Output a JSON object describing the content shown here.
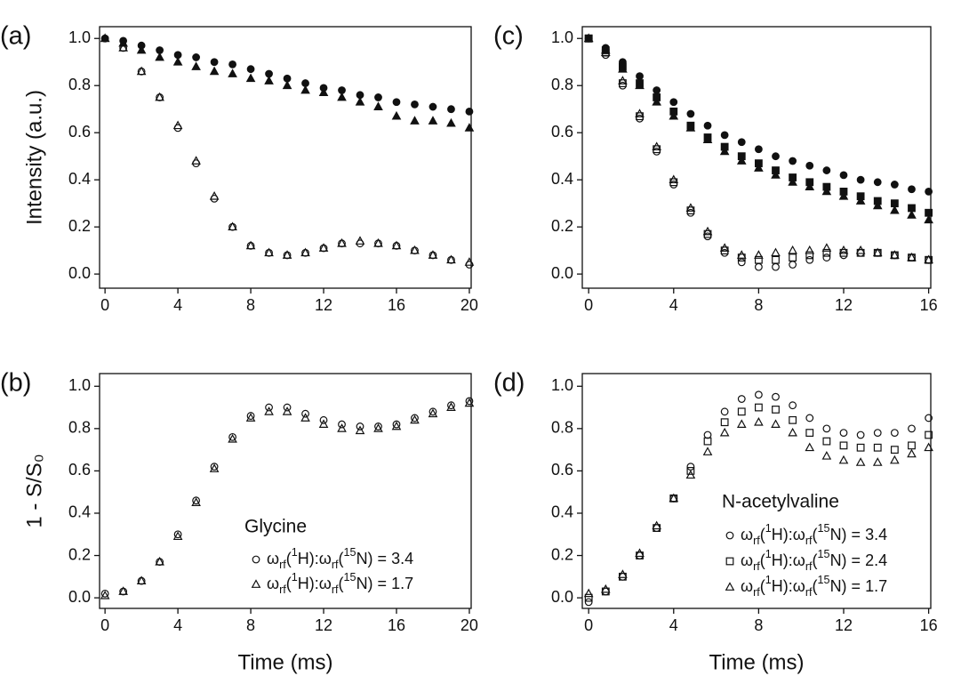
{
  "chart_data": [
    {
      "type": "scatter",
      "panel_label": "(a)",
      "ylabel": "Intensity (a.u.)",
      "x": [
        0,
        1,
        2,
        3,
        4,
        5,
        6,
        7,
        8,
        9,
        10,
        11,
        12,
        13,
        14,
        15,
        16,
        17,
        18,
        19,
        20
      ],
      "series": [
        {
          "marker": "circle",
          "filled": false,
          "color": "#111111",
          "values": [
            1.0,
            0.96,
            0.86,
            0.75,
            0.62,
            0.47,
            0.32,
            0.2,
            0.12,
            0.09,
            0.08,
            0.09,
            0.11,
            0.13,
            0.13,
            0.13,
            0.12,
            0.1,
            0.08,
            0.06,
            0.04
          ]
        },
        {
          "marker": "triangle",
          "filled": false,
          "color": "#111111",
          "values": [
            1.0,
            0.96,
            0.86,
            0.75,
            0.63,
            0.48,
            0.33,
            0.2,
            0.12,
            0.09,
            0.08,
            0.09,
            0.11,
            0.13,
            0.14,
            0.13,
            0.12,
            0.1,
            0.08,
            0.06,
            0.05
          ]
        },
        {
          "marker": "circle",
          "filled": true,
          "color": "#111111",
          "values": [
            1.0,
            0.99,
            0.97,
            0.95,
            0.93,
            0.92,
            0.9,
            0.89,
            0.87,
            0.85,
            0.83,
            0.81,
            0.79,
            0.78,
            0.76,
            0.75,
            0.73,
            0.72,
            0.71,
            0.7,
            0.69
          ]
        },
        {
          "marker": "triangle",
          "filled": true,
          "color": "#111111",
          "values": [
            1.0,
            0.98,
            0.95,
            0.92,
            0.9,
            0.88,
            0.86,
            0.85,
            0.83,
            0.82,
            0.8,
            0.78,
            0.77,
            0.75,
            0.73,
            0.71,
            0.67,
            0.65,
            0.65,
            0.64,
            0.62
          ]
        }
      ],
      "xlim": [
        -0.3,
        20.1
      ],
      "ylim": [
        -0.06,
        1.05
      ],
      "xticks": [
        0,
        4,
        8,
        12,
        16,
        20
      ],
      "yticks": [
        {
          "value": 0,
          "label": "0.0"
        },
        0.2,
        0.4,
        0.6,
        0.8,
        {
          "value": 1,
          "label": "1.0"
        }
      ]
    },
    {
      "type": "scatter",
      "panel_label": "(b)",
      "ylabel": "1 - S/S₀",
      "xlabel": "Time (ms)",
      "legend_title": "Glycine",
      "x": [
        0,
        1,
        2,
        3,
        4,
        5,
        6,
        7,
        8,
        9,
        10,
        11,
        12,
        13,
        14,
        15,
        16,
        17,
        18,
        19,
        20
      ],
      "series": [
        {
          "name": "ωrf(1H):ωrf(15N) = 3.4",
          "marker": "circle",
          "filled": false,
          "color": "#111111",
          "values": [
            0.02,
            0.03,
            0.08,
            0.17,
            0.3,
            0.46,
            0.62,
            0.76,
            0.86,
            0.9,
            0.9,
            0.87,
            0.84,
            0.82,
            0.81,
            0.81,
            0.82,
            0.85,
            0.88,
            0.91,
            0.93
          ]
        },
        {
          "name": "ωrf(1H):ωrf(15N) = 1.7",
          "marker": "triangle",
          "filled": false,
          "color": "#111111",
          "values": [
            0.01,
            0.03,
            0.08,
            0.17,
            0.29,
            0.45,
            0.61,
            0.75,
            0.85,
            0.88,
            0.88,
            0.85,
            0.82,
            0.8,
            0.79,
            0.8,
            0.81,
            0.84,
            0.87,
            0.9,
            0.92
          ]
        }
      ],
      "xlim": [
        -0.3,
        20.1
      ],
      "ylim": [
        -0.05,
        1.06
      ],
      "xticks": [
        0,
        4,
        8,
        12,
        16,
        20
      ],
      "yticks": [
        {
          "value": 0,
          "label": "0.0"
        },
        0.2,
        0.4,
        0.6,
        0.8,
        {
          "value": 1,
          "label": "1.0"
        }
      ]
    },
    {
      "type": "scatter",
      "panel_label": "(c)",
      "x": [
        0,
        0.8,
        1.6,
        2.4,
        3.2,
        4,
        4.8,
        5.6,
        6.4,
        7.2,
        8,
        8.8,
        9.6,
        10.4,
        11.2,
        12,
        12.8,
        13.6,
        14.4,
        15.2,
        16
      ],
      "series": [
        {
          "marker": "circle",
          "filled": false,
          "color": "#111111",
          "values": [
            1.0,
            0.93,
            0.8,
            0.66,
            0.52,
            0.38,
            0.26,
            0.16,
            0.09,
            0.05,
            0.03,
            0.03,
            0.04,
            0.06,
            0.07,
            0.08,
            0.09,
            0.09,
            0.08,
            0.07,
            0.06
          ]
        },
        {
          "marker": "square",
          "filled": false,
          "color": "#111111",
          "values": [
            1.0,
            0.94,
            0.81,
            0.67,
            0.53,
            0.39,
            0.27,
            0.17,
            0.1,
            0.07,
            0.06,
            0.06,
            0.07,
            0.08,
            0.09,
            0.09,
            0.09,
            0.09,
            0.08,
            0.07,
            0.06
          ]
        },
        {
          "marker": "triangle",
          "filled": false,
          "color": "#111111",
          "values": [
            1.0,
            0.94,
            0.82,
            0.68,
            0.54,
            0.4,
            0.28,
            0.18,
            0.11,
            0.08,
            0.08,
            0.09,
            0.1,
            0.1,
            0.11,
            0.1,
            0.1,
            0.09,
            0.08,
            0.07,
            0.06
          ]
        },
        {
          "marker": "circle",
          "filled": true,
          "color": "#111111",
          "values": [
            1.0,
            0.96,
            0.9,
            0.84,
            0.78,
            0.73,
            0.68,
            0.63,
            0.59,
            0.56,
            0.53,
            0.5,
            0.48,
            0.46,
            0.44,
            0.42,
            0.4,
            0.39,
            0.38,
            0.36,
            0.35
          ]
        },
        {
          "marker": "square",
          "filled": true,
          "color": "#111111",
          "values": [
            1.0,
            0.95,
            0.88,
            0.81,
            0.75,
            0.69,
            0.63,
            0.58,
            0.54,
            0.5,
            0.47,
            0.44,
            0.41,
            0.39,
            0.37,
            0.35,
            0.33,
            0.31,
            0.3,
            0.28,
            0.26
          ]
        },
        {
          "marker": "triangle",
          "filled": true,
          "color": "#111111",
          "values": [
            1.0,
            0.95,
            0.87,
            0.8,
            0.73,
            0.67,
            0.62,
            0.57,
            0.52,
            0.48,
            0.45,
            0.42,
            0.39,
            0.37,
            0.35,
            0.33,
            0.31,
            0.29,
            0.27,
            0.25,
            0.23
          ]
        }
      ],
      "xlim": [
        -0.3,
        16.1
      ],
      "ylim": [
        -0.06,
        1.05
      ],
      "xticks": [
        0,
        4,
        8,
        12,
        16
      ],
      "yticks": [
        {
          "value": 0,
          "label": "0.0"
        },
        0.2,
        0.4,
        0.6,
        0.8,
        {
          "value": 1,
          "label": "1.0"
        }
      ]
    },
    {
      "type": "scatter",
      "panel_label": "(d)",
      "xlabel": "Time (ms)",
      "legend_title": "N-acetylvaline",
      "x": [
        0,
        0.8,
        1.6,
        2.4,
        3.2,
        4,
        4.8,
        5.6,
        6.4,
        7.2,
        8,
        8.8,
        9.6,
        10.4,
        11.2,
        12,
        12.8,
        13.6,
        14.4,
        15.2,
        16
      ],
      "series": [
        {
          "name": "ωrf(1H):ωrf(15N) = 3.4",
          "marker": "circle",
          "filled": false,
          "color": "#111111",
          "values": [
            -0.02,
            0.03,
            0.1,
            0.2,
            0.33,
            0.47,
            0.62,
            0.77,
            0.88,
            0.94,
            0.96,
            0.95,
            0.91,
            0.85,
            0.8,
            0.78,
            0.77,
            0.78,
            0.78,
            0.8,
            0.85
          ]
        },
        {
          "name": "ωrf(1H):ωrf(15N) = 2.4",
          "marker": "square",
          "filled": false,
          "color": "#111111",
          "values": [
            0.0,
            0.03,
            0.1,
            0.2,
            0.33,
            0.47,
            0.6,
            0.74,
            0.83,
            0.88,
            0.9,
            0.89,
            0.84,
            0.78,
            0.74,
            0.72,
            0.71,
            0.71,
            0.7,
            0.72,
            0.77
          ]
        },
        {
          "name": "ωrf(1H):ωrf(15N) = 1.7",
          "marker": "triangle",
          "filled": false,
          "color": "#111111",
          "values": [
            0.02,
            0.04,
            0.11,
            0.21,
            0.34,
            0.47,
            0.58,
            0.69,
            0.78,
            0.82,
            0.83,
            0.82,
            0.78,
            0.71,
            0.67,
            0.65,
            0.64,
            0.64,
            0.65,
            0.68,
            0.71
          ]
        }
      ],
      "xlim": [
        -0.3,
        16.1
      ],
      "ylim": [
        -0.05,
        1.06
      ],
      "xticks": [
        0,
        4,
        8,
        12,
        16
      ],
      "yticks": [
        {
          "value": 0,
          "label": "0.0"
        },
        0.2,
        0.4,
        0.6,
        0.8,
        {
          "value": 1,
          "label": "1.0"
        }
      ]
    }
  ]
}
